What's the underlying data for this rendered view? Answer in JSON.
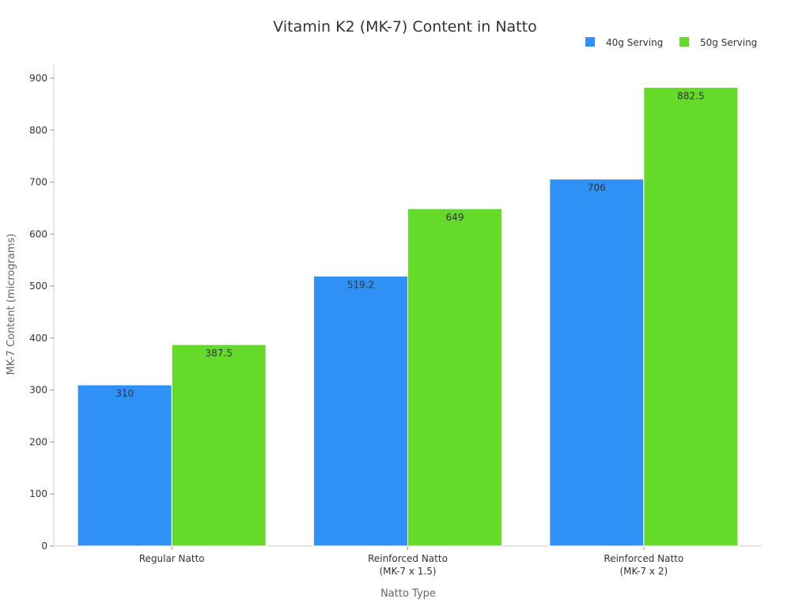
{
  "chart_data": {
    "type": "bar",
    "title": "Vitamin K2 (MK-7) Content in Natto",
    "xlabel": "Natto Type",
    "ylabel": "MK-7 Content (micrograms)",
    "categories": [
      [
        "Regular Natto"
      ],
      [
        "Reinforced Natto",
        "(MK-7 x 1.5)"
      ],
      [
        "Reinforced Natto",
        "(MK-7 x 2)"
      ]
    ],
    "series": [
      {
        "name": "40g Serving",
        "color": "#2f91f6",
        "values": [
          310,
          519.2,
          706
        ],
        "labels": [
          "310",
          "519.2",
          "706"
        ]
      },
      {
        "name": "50g Serving",
        "color": "#66da29",
        "values": [
          387.5,
          649,
          882.5
        ],
        "labels": [
          "387.5",
          "649",
          "882.5"
        ]
      }
    ],
    "ylim": [
      0,
      900
    ],
    "yticks": [
      0,
      100,
      200,
      300,
      400,
      500,
      600,
      700,
      800,
      900
    ],
    "grid": false,
    "legend": "top-right"
  }
}
